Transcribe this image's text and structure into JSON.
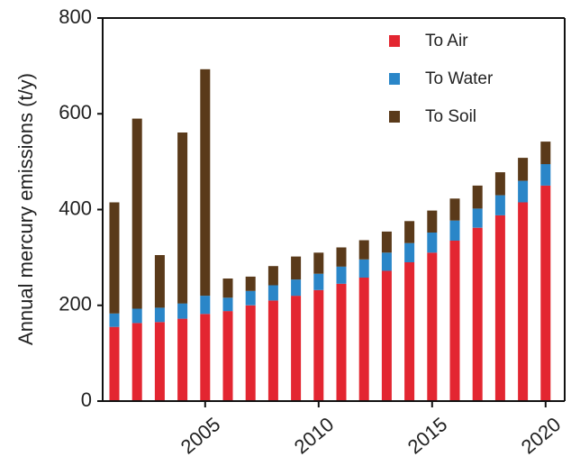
{
  "chart_data": {
    "type": "bar",
    "stacked": true,
    "title": "",
    "xlabel": "",
    "ylabel": "Annual mercury emissions (t/y)",
    "ylim": [
      0,
      800
    ],
    "y_ticks": [
      "0",
      "200",
      "400",
      "600",
      "800"
    ],
    "x_ticks": [
      "2005",
      "2010",
      "2015",
      "2020"
    ],
    "categories": [
      2001,
      2002,
      2003,
      2004,
      2005,
      2006,
      2007,
      2008,
      2009,
      2010,
      2011,
      2012,
      2013,
      2014,
      2015,
      2016,
      2017,
      2018,
      2019,
      2020
    ],
    "series": [
      {
        "name": "To Air",
        "color": "#e32631",
        "values": [
          155,
          163,
          165,
          172,
          182,
          188,
          200,
          210,
          220,
          232,
          245,
          258,
          272,
          290,
          310,
          335,
          362,
          388,
          415,
          450
        ]
      },
      {
        "name": "To Water",
        "color": "#2a86c8",
        "values": [
          28,
          30,
          30,
          32,
          38,
          28,
          30,
          32,
          34,
          34,
          36,
          38,
          38,
          40,
          42,
          42,
          40,
          42,
          45,
          45
        ]
      },
      {
        "name": "To Soil",
        "color": "#5a3a1a",
        "values": [
          232,
          397,
          110,
          357,
          473,
          40,
          30,
          40,
          48,
          44,
          40,
          40,
          44,
          46,
          46,
          46,
          48,
          48,
          48,
          47
        ]
      }
    ],
    "legend_position": "top-right",
    "grid": false
  }
}
